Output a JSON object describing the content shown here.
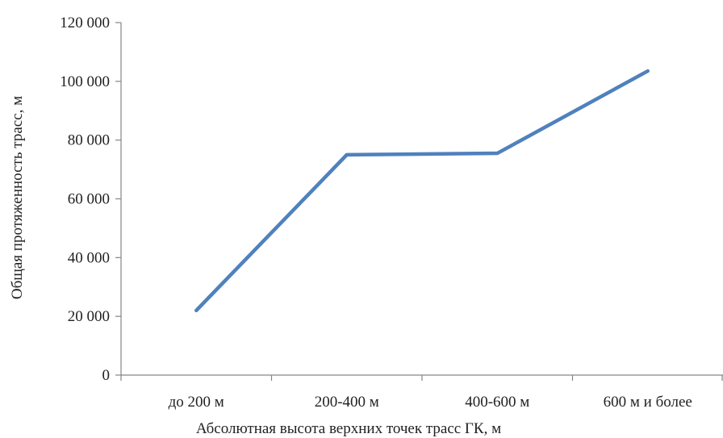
{
  "chart_data": {
    "type": "line",
    "categories": [
      "до 200 м",
      "200-400 м",
      "400-600 м",
      "600 м и более"
    ],
    "series": [
      {
        "values": [
          22000,
          75000,
          75500,
          103500
        ],
        "color": "#4f81bd"
      }
    ],
    "title": "",
    "xlabel": "Абсолютная высота верхних точек трасс ГК, м",
    "ylabel": "Общая протяженность трасс,  м",
    "ylim": [
      0,
      120000
    ],
    "y_ticks": [
      0,
      20000,
      40000,
      60000,
      80000,
      100000,
      120000
    ],
    "y_tick_labels": [
      "0",
      "20 000",
      "40 000",
      "60 000",
      "80 000",
      "100 000",
      "120 000"
    ],
    "grid": false,
    "legend": "none"
  }
}
